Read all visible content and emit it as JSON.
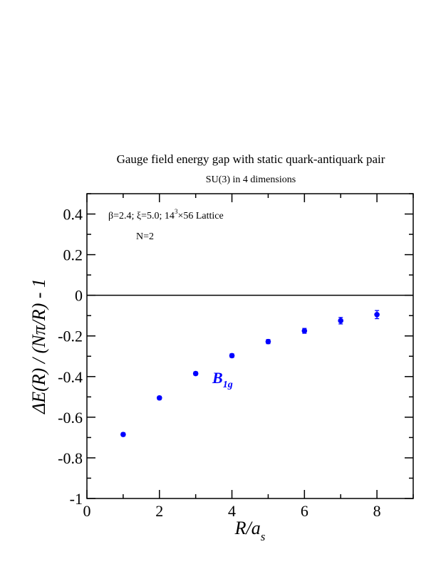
{
  "chart_data": {
    "type": "scatter",
    "title": "Gauge field energy gap with static quark-antiquark pair",
    "subtitle": "SU(3) in 4 dimensions",
    "annotation": {
      "params_prefix": "β=2.4;  ξ=5.0;  14",
      "params_sup": "3",
      "params_suffix": "×56 Lattice",
      "n_label": "N=2"
    },
    "xlabel": {
      "main": "R/a",
      "sub": "s"
    },
    "ylabel": "ΔE(R) / (Nπ/R) - 1",
    "xlim": [
      0,
      9
    ],
    "ylim": [
      -1,
      0.5
    ],
    "x_ticks": [
      0,
      2,
      4,
      6,
      8
    ],
    "y_ticks": [
      -1,
      -0.8,
      -0.6,
      -0.4,
      -0.2,
      0,
      0.2,
      0.4
    ],
    "y_tick_labels": [
      "-1",
      "-0.8",
      "-0.6",
      "-0.4",
      "-0.2",
      "0",
      "0.2",
      "0.4"
    ],
    "x_tick_labels": [
      "0",
      "2",
      "4",
      "6",
      "8"
    ],
    "reference_line_y": 0,
    "color": "#0000ff",
    "series": [
      {
        "name": "B1g",
        "label_main": "B",
        "label_sub": "1g",
        "x": [
          1,
          2,
          3,
          4,
          5,
          6,
          7,
          8
        ],
        "y": [
          -0.685,
          -0.505,
          -0.385,
          -0.297,
          -0.228,
          -0.175,
          -0.125,
          -0.095
        ],
        "err": [
          0.008,
          0.008,
          0.008,
          0.009,
          0.01,
          0.012,
          0.016,
          0.02
        ]
      }
    ]
  }
}
